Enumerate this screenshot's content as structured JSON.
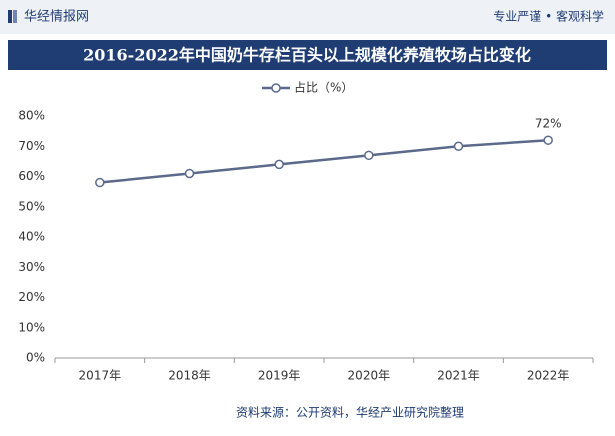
{
  "header": {
    "brand": "华经情报网",
    "slogan": "专业严谨 • 客观科学"
  },
  "chart_data": {
    "type": "line",
    "title": "2016-2022年中国奶牛存栏百头以上规模化养殖牧场占比变化",
    "categories": [
      "2017年",
      "2018年",
      "2019年",
      "2020年",
      "2021年",
      "2022年"
    ],
    "series": [
      {
        "name": "占比（%）",
        "color": "#5b6a8a",
        "values": [
          58,
          61,
          64,
          67,
          70,
          72
        ],
        "value_labels": [
          null,
          null,
          null,
          null,
          null,
          "72%"
        ]
      }
    ],
    "ylim": [
      0,
      80
    ],
    "yticks": [
      {
        "value": 0,
        "label": "0%"
      },
      {
        "value": 10,
        "label": "10%"
      },
      {
        "value": 20,
        "label": "20%"
      },
      {
        "value": 30,
        "label": "30%"
      },
      {
        "value": 40,
        "label": "40%"
      },
      {
        "value": 50,
        "label": "50%"
      },
      {
        "value": 60,
        "label": "60%"
      },
      {
        "value": 70,
        "label": "70%"
      },
      {
        "value": 80,
        "label": "80%"
      }
    ],
    "grid": false,
    "legend": "top"
  },
  "footer": {
    "source": "资料来源：公开资料，华经产业研究院整理"
  }
}
